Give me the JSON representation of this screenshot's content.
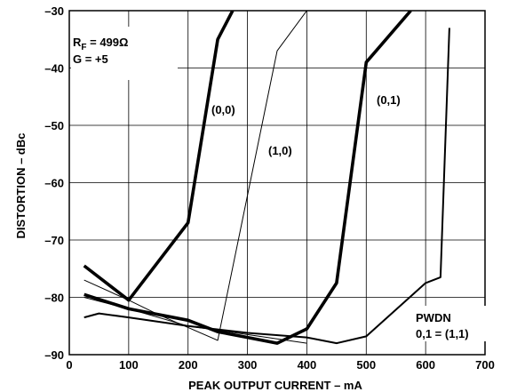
{
  "chart_data": {
    "type": "line",
    "xlabel": "PEAK OUTPUT CURRENT – mA",
    "ylabel": "DISTORTION – dBc",
    "xlim": [
      0,
      700
    ],
    "ylim": [
      -90,
      -30
    ],
    "xticks": [
      0,
      100,
      200,
      300,
      400,
      500,
      600,
      700
    ],
    "yticks": [
      -30,
      -40,
      -50,
      -60,
      -70,
      -80,
      -90
    ],
    "grid": true,
    "annotations": {
      "rf_prefix": "R",
      "rf_sub": "F",
      "rf_value": " = 499Ω",
      "gain": "G = +5",
      "pwdn_line1": "PWDN",
      "pwdn_line2": "0,1 = (1,1)"
    },
    "series": [
      {
        "name": "(0,0)",
        "stroke": "thick",
        "x": [
          25,
          100,
          200,
          250,
          275
        ],
        "y": [
          -74.5,
          -80.5,
          -67,
          -35,
          -30
        ]
      },
      {
        "name": "(0,0)",
        "stroke": "thick",
        "x": [
          25,
          100,
          200,
          250,
          300,
          350,
          400,
          450,
          500,
          575
        ],
        "y": [
          -79.5,
          -82,
          -84,
          -86,
          -87,
          -88,
          -85.5,
          -77.5,
          -39,
          -30
        ]
      },
      {
        "name": "(1,0)",
        "stroke": "thin",
        "x": [
          25,
          100,
          150,
          250,
          350,
          400
        ],
        "y": [
          -77,
          -80.5,
          -83,
          -87.5,
          -37,
          -30
        ]
      },
      {
        "name": "(1,0)",
        "stroke": "thin",
        "x": [
          25,
          100,
          200,
          300,
          400
        ],
        "y": [
          -80,
          -82,
          -85,
          -86.5,
          -88
        ]
      },
      {
        "name": "(0,1)",
        "stroke": "medium",
        "x": [
          25,
          50,
          100,
          200,
          300,
          400,
          450,
          500,
          600,
          625,
          640
        ],
        "y": [
          -83.5,
          -82.8,
          -83.5,
          -85,
          -86.2,
          -87,
          -88,
          -86.8,
          -77.5,
          -76.5,
          -33
        ]
      }
    ]
  }
}
